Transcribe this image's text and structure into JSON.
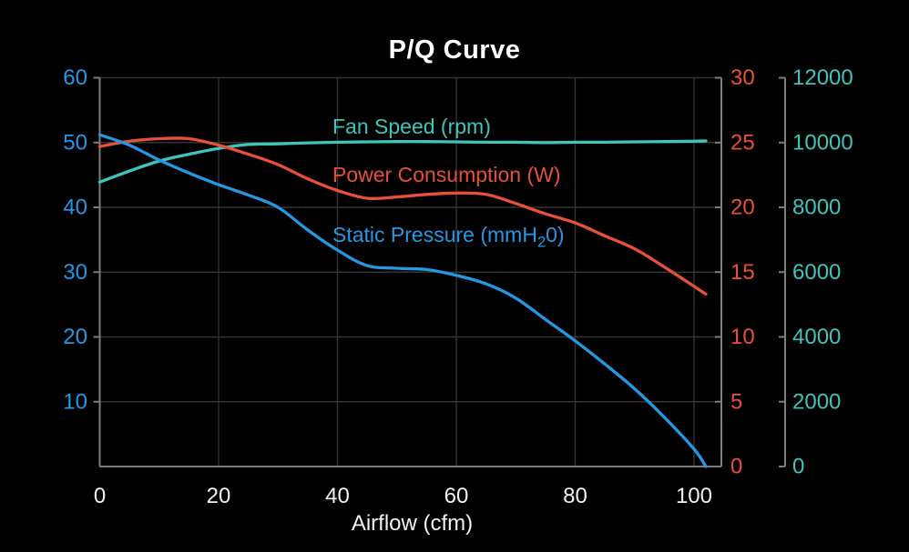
{
  "chart_data": {
    "type": "line",
    "title": "P/Q Curve",
    "xlabel": "Airflow (cfm)",
    "background": "#000000",
    "grid_color": "#343434",
    "axis_line_color": "#7d7d7d",
    "grid": true,
    "legend_position": "inline-labels-near-curves",
    "x_axis": {
      "min": 0,
      "max": 104.6,
      "ticks": [
        0,
        20,
        40,
        60,
        80,
        100
      ],
      "tick_label_color": "#f2f2f2"
    },
    "axes": {
      "pressure": {
        "side": "left",
        "min": 0,
        "max": 60,
        "ticks": [
          10,
          20,
          30,
          40,
          50,
          60
        ],
        "color": "#2598e4"
      },
      "power": {
        "side": "right-inner",
        "min": 0,
        "max": 30,
        "ticks": [
          0,
          5,
          10,
          15,
          20,
          25,
          30
        ],
        "color": "#e8503a"
      },
      "fan": {
        "side": "right-outer",
        "min": 0,
        "max": 12000,
        "ticks": [
          0,
          2000,
          4000,
          6000,
          8000,
          10000,
          12000
        ],
        "color": "#3fc5bc"
      }
    },
    "x": [
      0,
      5,
      10,
      15,
      20,
      25,
      30,
      35,
      40,
      45,
      50,
      55,
      60,
      65,
      70,
      75,
      80,
      85,
      90,
      95,
      100,
      102
    ],
    "series": [
      {
        "name": "Fan Speed (rpm)",
        "axis": "fan",
        "color": "#3fc5bc",
        "values": [
          8780,
          9120,
          9430,
          9640,
          9820,
          9940,
          9960,
          9990,
          10010,
          10020,
          10030,
          10030,
          10020,
          10010,
          10010,
          10000,
          10010,
          10010,
          10020,
          10030,
          10040,
          10050
        ]
      },
      {
        "name": "Power Consumption (W)",
        "axis": "power",
        "color": "#e8503a",
        "values": [
          24.7,
          25.1,
          25.3,
          25.3,
          24.8,
          24.1,
          23.3,
          22.2,
          21.3,
          20.7,
          20.8,
          21.0,
          21.1,
          21.0,
          20.3,
          19.5,
          18.8,
          17.8,
          16.8,
          15.4,
          13.9,
          13.3
        ]
      },
      {
        "name": "Static Pressure (mmH20)",
        "axis": "pressure",
        "color": "#2598e4",
        "label_parts": {
          "pre": "Static Pressure (mmH",
          "sub": "2",
          "post": "0)"
        },
        "values": [
          51.2,
          49.6,
          47.3,
          45.3,
          43.5,
          41.9,
          40.0,
          36.5,
          33.4,
          31.0,
          30.6,
          30.4,
          29.5,
          28.2,
          26.0,
          22.7,
          19.4,
          15.8,
          12.0,
          7.6,
          2.7,
          0
        ]
      }
    ]
  }
}
